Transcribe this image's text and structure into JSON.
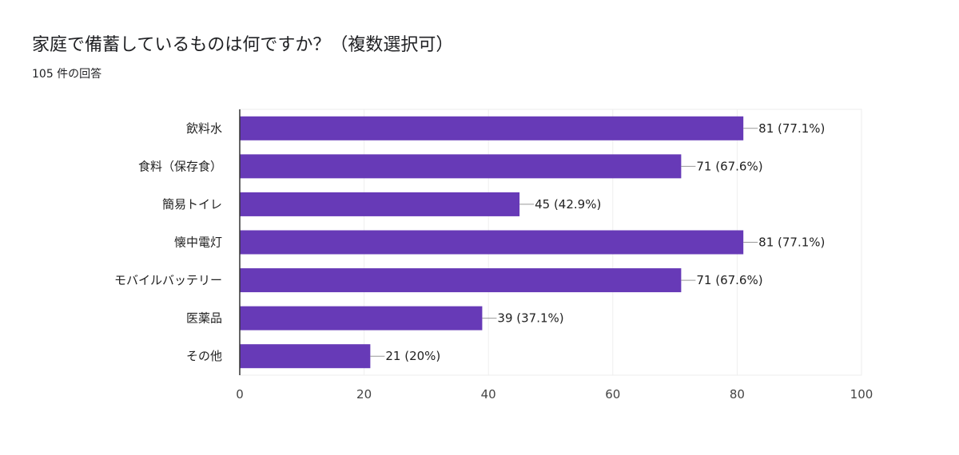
{
  "title": "家庭で備蓄しているものは何ですか？（複数選択可）",
  "subtitle": "105 件の回答",
  "chart_data": {
    "type": "bar",
    "orientation": "horizontal",
    "categories": [
      "飲料水",
      "食料（保存食）",
      "簡易トイレ",
      "懐中電灯",
      "モバイルバッテリー",
      "医薬品",
      "その他"
    ],
    "values": [
      81,
      71,
      45,
      81,
      71,
      39,
      21
    ],
    "data_labels": [
      "81 (77.1%)",
      "71 (67.6%)",
      "45 (42.9%)",
      "81 (77.1%)",
      "71 (67.6%)",
      "39 (37.1%)",
      "21 (20%)"
    ],
    "xlim": [
      0,
      100
    ],
    "xticks": [
      0,
      20,
      40,
      60,
      80,
      100
    ],
    "grid": true,
    "bar_color": "#673ab7"
  }
}
